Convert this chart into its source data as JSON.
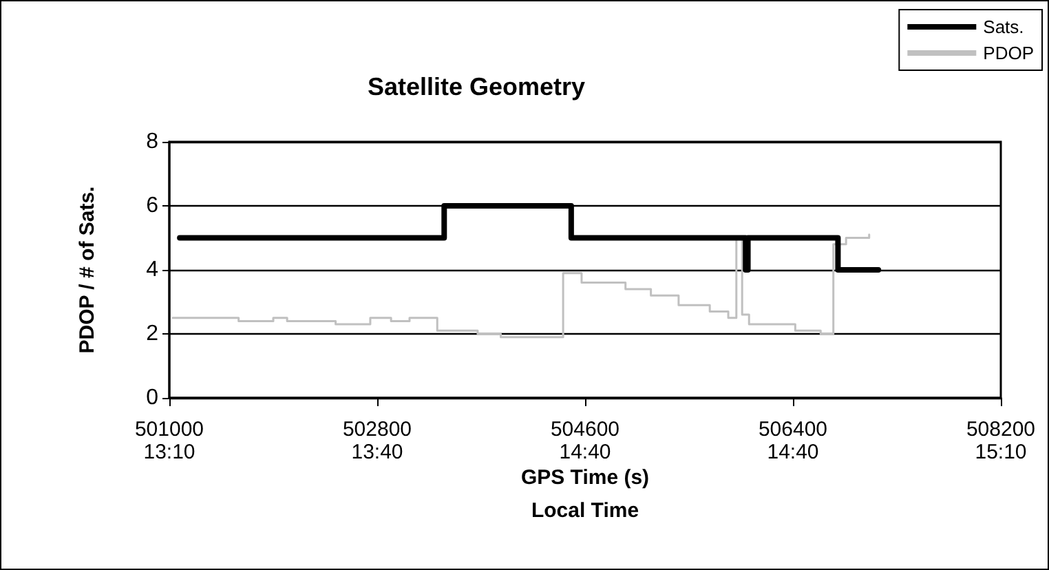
{
  "chart_data": {
    "type": "step",
    "title": "Satellite Geometry",
    "xlabel": "GPS Time (s)\nLocal Time",
    "ylabel": "PDOP / # of Sats.",
    "xlim": [
      501000,
      508200
    ],
    "xticks": [
      501000,
      502800,
      504600,
      506400,
      508200
    ],
    "annotations": [
      "13:10",
      "13:40",
      "14:40",
      "14:40",
      "15:10"
    ],
    "ylim": [
      0,
      8
    ],
    "yticks": [
      0,
      2,
      4,
      6,
      8
    ],
    "grid": "y",
    "legend": "top right",
    "marker": "none",
    "line_style": "solid",
    "series": [
      {
        "name": "Sats.",
        "color": "#000000",
        "x": [
          501090,
          503380,
          504480,
          505990,
          506010,
          506790,
          507140
        ],
        "values": [
          5,
          6,
          5,
          4,
          5,
          4,
          4
        ]
      },
      {
        "name": "PDOP",
        "color": "#c0c0c0",
        "x": [
          501030,
          501600,
          501900,
          502020,
          502440,
          502740,
          502920,
          503080,
          503320,
          503670,
          503870,
          504410,
          504570,
          504950,
          505170,
          505410,
          505680,
          505840,
          505910,
          505960,
          506020,
          506220,
          506420,
          506640,
          506750,
          506860,
          507060
        ],
        "values": [
          2.5,
          2.4,
          2.5,
          2.4,
          2.3,
          2.5,
          2.4,
          2.5,
          2.1,
          2.0,
          1.9,
          3.9,
          3.6,
          3.4,
          3.2,
          2.9,
          2.7,
          2.5,
          5.0,
          2.6,
          2.3,
          2.3,
          2.1,
          2.0,
          4.8,
          5.0,
          5.1
        ]
      }
    ]
  }
}
